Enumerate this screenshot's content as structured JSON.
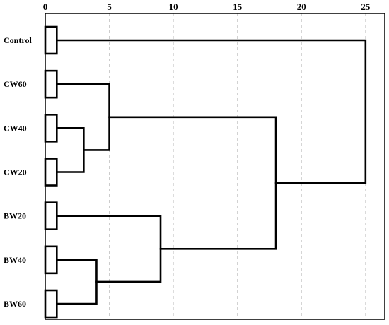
{
  "chart_data": {
    "type": "dendrogram",
    "x_ticks": [
      0,
      5,
      10,
      15,
      20,
      25
    ],
    "xlim": [
      0,
      26.5
    ],
    "grid": "vertical dashed",
    "leaves": [
      "Control",
      "CW60",
      "CW40",
      "CW20",
      "BW20",
      "BW40",
      "BW60"
    ],
    "leaf_box_height": 0.9,
    "merges": [
      {
        "left": "CW40",
        "right": "CW20",
        "height": 3
      },
      {
        "left": "BW40",
        "right": "BW60",
        "height": 4
      },
      {
        "left": "CW60",
        "right": "CW40+CW20",
        "height": 5
      },
      {
        "left": "BW20",
        "right": "BW40+BW60",
        "height": 9
      },
      {
        "left": "CW60+CW40+CW20",
        "right": "BW20+BW40+BW60",
        "height": 18
      },
      {
        "left": "Control",
        "right": "all-others",
        "height": 25
      }
    ]
  }
}
